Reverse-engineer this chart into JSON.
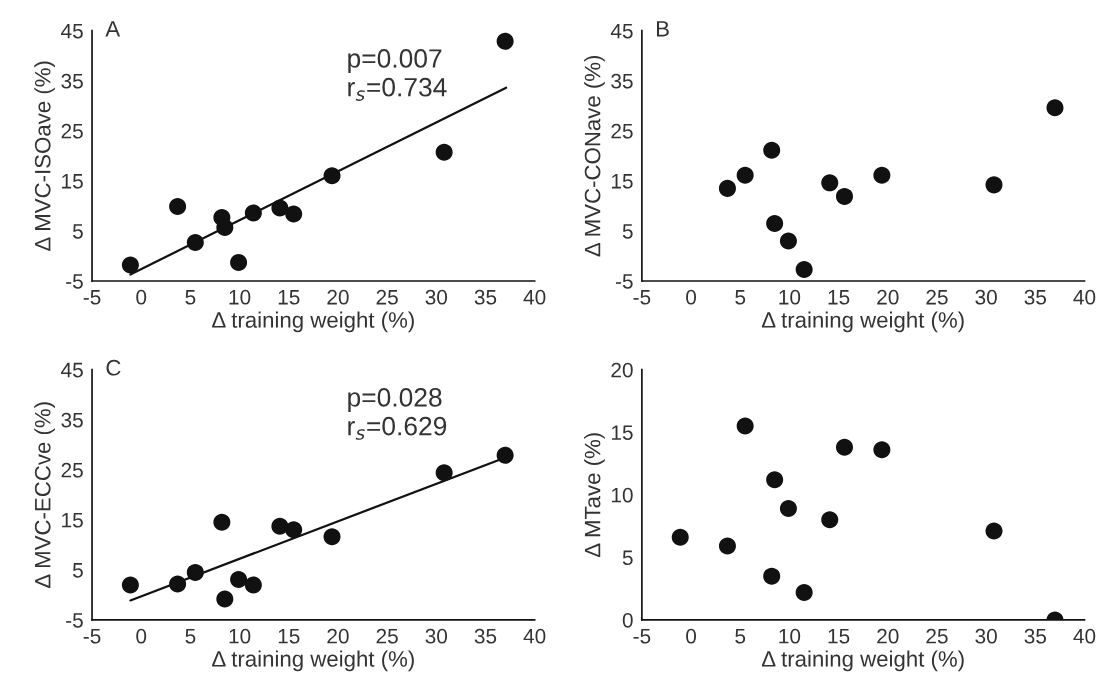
{
  "chart_data": [
    {
      "type": "scatter",
      "xlabel": "Δ training weight (%)",
      "ylabel": "Δ MVC-ISOave (%)",
      "annotations": [
        "A",
        "p=0.007",
        "r$_{s}$=0.734"
      ],
      "xlim": [
        -5,
        40
      ],
      "xticks": [
        -5,
        0,
        5,
        10,
        15,
        20,
        25,
        30,
        35,
        40
      ],
      "ylim": [
        -5,
        45
      ],
      "yticks": [
        -5,
        5,
        15,
        25,
        35,
        45
      ],
      "grid": false,
      "legend": false,
      "marker": "circle",
      "series": [
        {
          "color": "#111111",
          "x": [
            -1.1,
            3.7,
            5.5,
            8.2,
            8.5,
            9.9,
            11.4,
            14.1,
            15.5,
            19.4,
            30.8,
            37.0
          ],
          "values": [
            -1.8,
            9.9,
            2.7,
            7.7,
            5.7,
            -1.3,
            8.6,
            9.6,
            8.4,
            16.0,
            20.7,
            42.9
          ]
        },
        {
          "type": "line",
          "marker": "none",
          "color": "#111111",
          "x": [
            -1.1,
            37.1
          ],
          "values": [
            -3.7,
            33.6
          ]
        }
      ]
    },
    {
      "type": "scatter",
      "xlabel": "Δ training weight (%)",
      "ylabel": "Δ MVC-CONave (%)",
      "annotations": [
        "B"
      ],
      "xlim": [
        -5,
        40
      ],
      "xticks": [
        -5,
        0,
        5,
        10,
        15,
        20,
        25,
        30,
        35,
        40
      ],
      "ylim": [
        -5,
        45
      ],
      "yticks": [
        -5,
        5,
        15,
        25,
        35,
        45
      ],
      "grid": false,
      "legend": false,
      "marker": "circle",
      "series": [
        {
          "color": "#111111",
          "x": [
            3.7,
            5.5,
            8.2,
            8.5,
            9.9,
            11.5,
            14.1,
            15.6,
            19.4,
            30.8,
            37.0
          ],
          "values": [
            13.5,
            16.1,
            21.1,
            6.5,
            3.0,
            -2.7,
            14.6,
            11.9,
            16.1,
            14.2,
            29.6
          ]
        }
      ]
    },
    {
      "type": "scatter",
      "xlabel": "Δ training weight (%)",
      "ylabel": "Δ MVC-ECCve (%)",
      "annotations": [
        "C",
        "p=0.028",
        "r$_{s}$=0.629"
      ],
      "xlim": [
        -5,
        40
      ],
      "xticks": [
        -5,
        0,
        5,
        10,
        15,
        20,
        25,
        30,
        35,
        40
      ],
      "ylim": [
        -5,
        45
      ],
      "yticks": [
        -5,
        5,
        15,
        25,
        35,
        45
      ],
      "grid": false,
      "legend": false,
      "marker": "circle",
      "series": [
        {
          "color": "#111111",
          "x": [
            -1.1,
            3.7,
            5.5,
            8.2,
            8.5,
            9.9,
            11.4,
            14.1,
            15.5,
            19.4,
            30.8,
            37.0
          ],
          "values": [
            2.0,
            2.2,
            4.5,
            14.5,
            -0.8,
            3.1,
            2.0,
            13.7,
            13.0,
            11.6,
            24.4,
            27.9
          ]
        },
        {
          "type": "line",
          "marker": "none",
          "color": "#111111",
          "x": [
            -1.1,
            37.1
          ],
          "values": [
            -1.1,
            27.5
          ]
        }
      ]
    },
    {
      "type": "scatter",
      "xlabel": "Δ training weight (%)",
      "ylabel": "Δ MTave (%)",
      "xlim": [
        -5,
        40
      ],
      "xticks": [
        -5,
        0,
        5,
        10,
        15,
        20,
        25,
        30,
        35,
        40
      ],
      "ylim": [
        0,
        20
      ],
      "yticks": [
        0,
        5,
        10,
        15,
        20
      ],
      "grid": false,
      "legend": false,
      "marker": "circle",
      "series": [
        {
          "color": "#111111",
          "x": [
            -1.1,
            3.7,
            5.5,
            8.2,
            8.5,
            9.9,
            11.5,
            14.1,
            15.6,
            19.4,
            30.8,
            37.0
          ],
          "values": [
            6.6,
            5.9,
            15.5,
            3.5,
            11.2,
            8.9,
            2.2,
            8.0,
            13.8,
            13.6,
            7.1,
            0.0
          ]
        }
      ]
    }
  ]
}
